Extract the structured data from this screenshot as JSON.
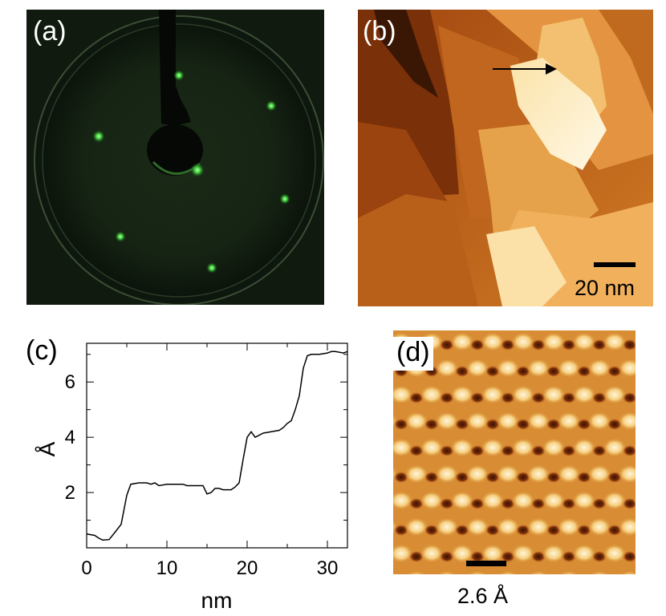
{
  "figure": {
    "panels": [
      {
        "id": "a",
        "label": "(a)"
      },
      {
        "id": "b",
        "label": "(b)",
        "scale_bar_text": "20 nm"
      },
      {
        "id": "c",
        "label": "(c)"
      },
      {
        "id": "d",
        "label": "(d)",
        "scale_bar_text": "2.6 Å"
      }
    ]
  },
  "chart_data": {
    "type": "line",
    "xlabel": "nm",
    "ylabel": "Å",
    "xlim": [
      0,
      32.5
    ],
    "ylim": [
      0,
      7.4
    ],
    "xticks": [
      0,
      10,
      20,
      30
    ],
    "yticks": [
      2,
      4,
      6
    ],
    "grid": false,
    "series": [
      {
        "x": [
          0,
          1,
          1.5,
          2,
          2.8,
          3.5,
          4.3,
          5,
          5.5,
          6.5,
          7.5,
          8,
          8.5,
          9,
          10,
          11,
          12,
          12.5,
          13,
          14,
          14.5,
          15,
          15.5,
          16,
          16.5,
          17,
          18,
          18.5,
          19,
          19.5,
          20,
          20.5,
          21,
          22,
          23,
          24,
          24.5,
          25,
          25.5,
          26,
          26.5,
          27,
          27.5,
          28,
          29,
          30,
          30.5,
          31,
          32,
          32.5
        ],
        "y": [
          0.5,
          0.45,
          0.35,
          0.28,
          0.3,
          0.55,
          0.85,
          1.9,
          2.3,
          2.35,
          2.35,
          2.3,
          2.35,
          2.25,
          2.3,
          2.3,
          2.3,
          2.25,
          2.25,
          2.25,
          2.25,
          1.95,
          2.0,
          2.15,
          2.15,
          2.1,
          2.1,
          2.2,
          2.35,
          3.2,
          4.0,
          4.2,
          4.0,
          4.15,
          4.2,
          4.25,
          4.35,
          4.5,
          4.6,
          5.0,
          5.5,
          6.5,
          6.95,
          7.0,
          7.0,
          7.05,
          7.1,
          7.1,
          7.05,
          7.1
        ]
      }
    ]
  }
}
